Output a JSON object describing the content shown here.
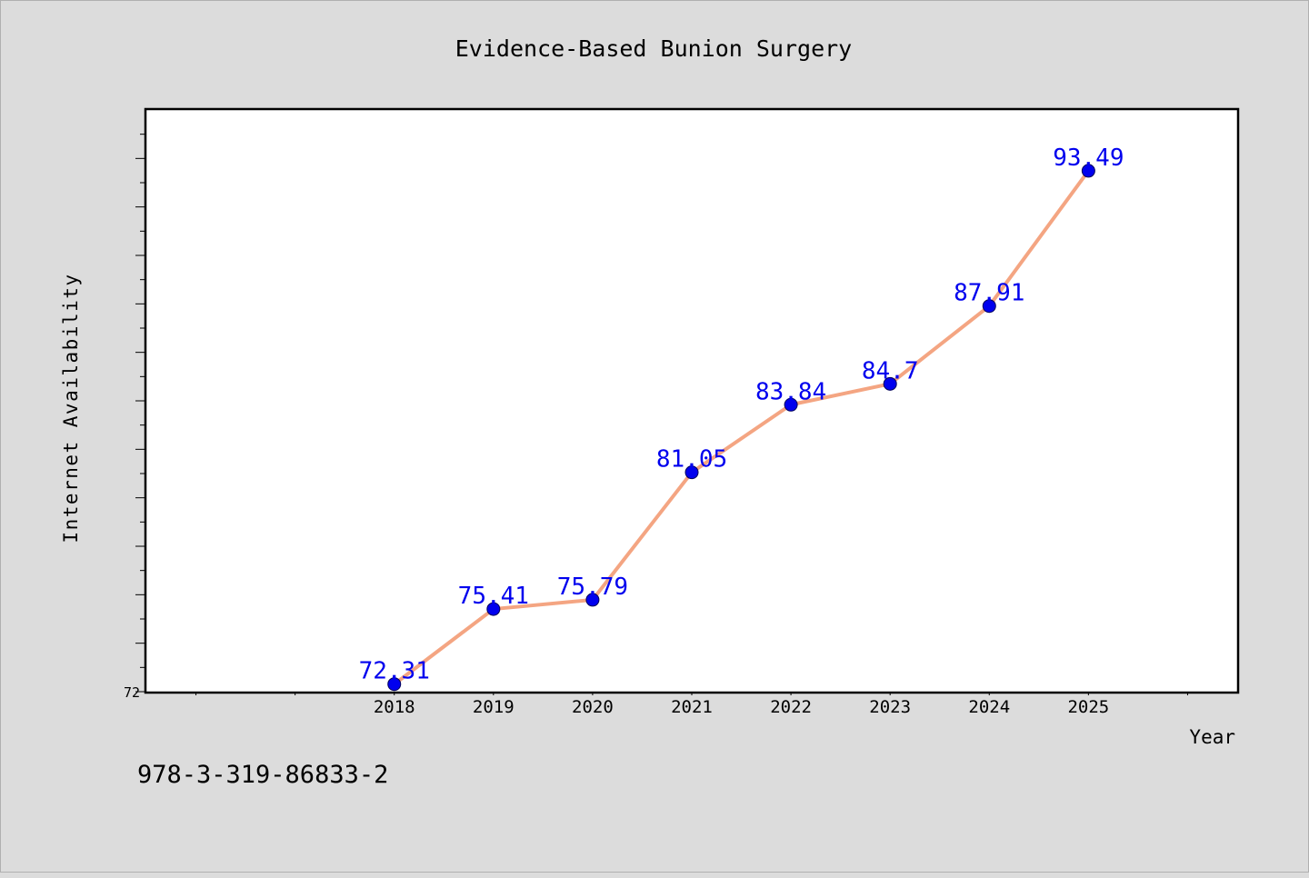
{
  "chart_data": {
    "type": "line",
    "title": "Evidence-Based Bunion Surgery",
    "xlabel": "Year",
    "ylabel": "Internet Availability",
    "x": [
      2018,
      2019,
      2020,
      2021,
      2022,
      2023,
      2024,
      2025
    ],
    "categories": [
      "2018",
      "2019",
      "2020",
      "2021",
      "2022",
      "2023",
      "2024",
      "2025"
    ],
    "series": [
      {
        "values": [
          72.31,
          75.41,
          75.79,
          81.05,
          83.84,
          84.7,
          87.91,
          93.49
        ],
        "labels": [
          "72.31",
          "75.41",
          "75.79",
          "81.05",
          "83.84",
          "84.7",
          "87.91",
          "93.49"
        ]
      }
    ],
    "xlim": [
      2015.5,
      2026.5
    ],
    "ylim": [
      72,
      96
    ],
    "yticklabels": [
      "72"
    ],
    "grid": false,
    "colors": {
      "line": "#f4a582",
      "marker": "#0000ee",
      "label": "#0000ee",
      "background": "#dcdcdc",
      "plot": "#ffffff"
    }
  },
  "footer": {
    "isbn": "978-3-319-86833-2"
  }
}
